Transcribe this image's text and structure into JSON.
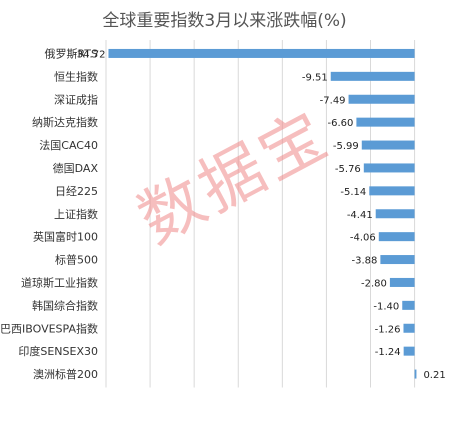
{
  "chart_data": {
    "type": "bar",
    "orientation": "horizontal",
    "title": "全球重要指数3月以来涨跌幅(%)",
    "categories": [
      "俄罗斯RTS",
      "恒生指数",
      "深证成指",
      "纳斯达克指数",
      "法国CAC40",
      "德国DAX",
      "日经225",
      "上证指数",
      "英国富时100",
      "标普500",
      "道琼斯工业指数",
      "韩国综合指数",
      "巴西IBOVESPA指数",
      "印度SENSEX30",
      "澳洲标普200"
    ],
    "values": [
      -34.72,
      -9.51,
      -7.49,
      -6.6,
      -5.99,
      -5.76,
      -5.14,
      -4.41,
      -4.06,
      -3.88,
      -2.8,
      -1.4,
      -1.26,
      -1.24,
      0.21
    ],
    "value_labels": [
      "-34.72",
      "-9.51",
      "-7.49",
      "-6.60",
      "-5.99",
      "-5.76",
      "-5.14",
      "-4.41",
      "-4.06",
      "-3.88",
      "-2.80",
      "-1.40",
      "-1.26",
      "-1.24",
      "0.21"
    ],
    "xlim": [
      -35,
      0.5
    ],
    "grid": true,
    "bar_color": "#5b9bd5"
  },
  "watermark": {
    "text": "数据宝"
  }
}
